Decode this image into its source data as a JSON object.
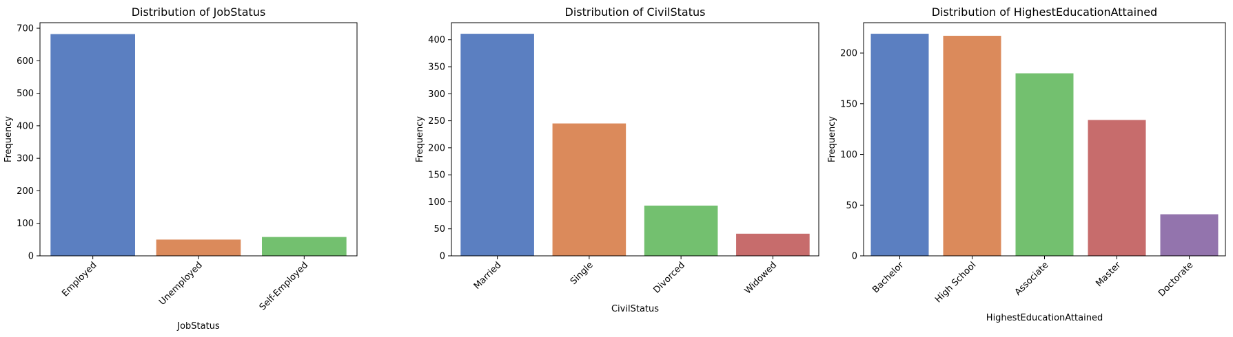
{
  "chart_data": [
    {
      "type": "bar",
      "title": "Distribution of JobStatus",
      "xlabel": "JobStatus",
      "ylabel": "Frequency",
      "categories": [
        "Employed",
        "Unemployed",
        "Self-Employed"
      ],
      "values": [
        682,
        50,
        58
      ],
      "ylim": [
        0,
        717
      ],
      "yticks": [
        0,
        100,
        200,
        300,
        400,
        500,
        600,
        700
      ],
      "colors": [
        "#5b7fc1",
        "#db8a5b",
        "#73c06f"
      ],
      "legend": false,
      "grid": false
    },
    {
      "type": "bar",
      "title": "Distribution of CivilStatus",
      "xlabel": "CivilStatus",
      "ylabel": "Frequency",
      "categories": [
        "Married",
        "Single",
        "Divorced",
        "Widowed"
      ],
      "values": [
        411,
        245,
        93,
        41
      ],
      "ylim": [
        0,
        431.5
      ],
      "yticks": [
        0,
        50,
        100,
        150,
        200,
        250,
        300,
        350,
        400
      ],
      "colors": [
        "#5b7fc1",
        "#db8a5b",
        "#73c06f",
        "#c76c6c"
      ],
      "legend": false,
      "grid": false
    },
    {
      "type": "bar",
      "title": "Distribution of HighestEducationAttained",
      "xlabel": "HighestEducationAttained",
      "ylabel": "Frequency",
      "categories": [
        "Bachelor",
        "High School",
        "Associate",
        "Master",
        "Doctorate"
      ],
      "values": [
        219,
        217,
        180,
        134,
        41
      ],
      "ylim": [
        0,
        229.9
      ],
      "yticks": [
        0,
        50,
        100,
        150,
        200
      ],
      "colors": [
        "#5b7fc1",
        "#db8a5b",
        "#73c06f",
        "#c76c6c",
        "#9374ad"
      ],
      "legend": false,
      "grid": false
    }
  ]
}
